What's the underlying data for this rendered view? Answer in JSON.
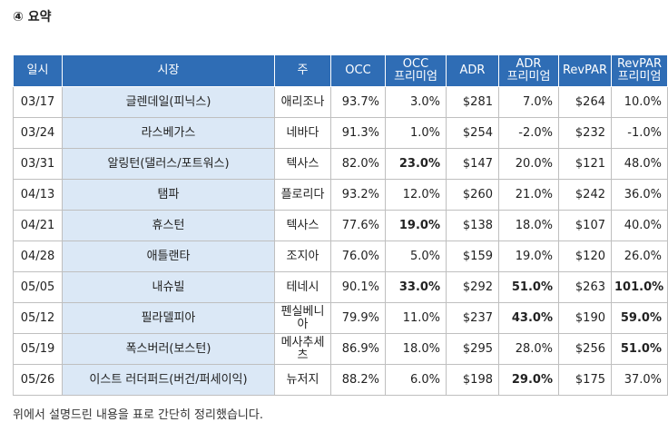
{
  "heading": "④ 요약",
  "headers": [
    "일시",
    "시장",
    "주",
    "OCC",
    "OCC\n프리미엄",
    "ADR",
    "ADR\n프리미엄",
    "RevPAR",
    "RevPAR\n프리미엄"
  ],
  "rows": [
    {
      "date": "03/17",
      "market": "글렌데일(피닉스)",
      "state": "애리조나",
      "occ": "93.7%",
      "occ_premium": "3.0%",
      "adr": "$281",
      "adr_premium": "7.0%",
      "revpar": "$264",
      "revpar_premium": "10.0%",
      "highlight": []
    },
    {
      "date": "03/24",
      "market": "라스베가스",
      "state": "네바다",
      "occ": "91.3%",
      "occ_premium": "1.0%",
      "adr": "$254",
      "adr_premium": "-2.0%",
      "revpar": "$232",
      "revpar_premium": "-1.0%",
      "highlight": []
    },
    {
      "date": "03/31",
      "market": "알링턴(댈러스/포트워스)",
      "state": "텍사스",
      "occ": "82.0%",
      "occ_premium": "23.0%",
      "adr": "$147",
      "adr_premium": "20.0%",
      "revpar": "$121",
      "revpar_premium": "48.0%",
      "highlight": [
        "occ_premium"
      ]
    },
    {
      "date": "04/13",
      "market": "탬파",
      "state": "플로리다",
      "occ": "93.2%",
      "occ_premium": "12.0%",
      "adr": "$260",
      "adr_premium": "21.0%",
      "revpar": "$242",
      "revpar_premium": "36.0%",
      "highlight": []
    },
    {
      "date": "04/21",
      "market": "휴스턴",
      "state": "텍사스",
      "occ": "77.6%",
      "occ_premium": "19.0%",
      "adr": "$138",
      "adr_premium": "18.0%",
      "revpar": "$107",
      "revpar_premium": "40.0%",
      "highlight": [
        "occ_premium"
      ]
    },
    {
      "date": "04/28",
      "market": "애틀랜타",
      "state": "조지아",
      "occ": "76.0%",
      "occ_premium": "5.0%",
      "adr": "$159",
      "adr_premium": "19.0%",
      "revpar": "$120",
      "revpar_premium": "26.0%",
      "highlight": []
    },
    {
      "date": "05/05",
      "market": "내슈빌",
      "state": "테네시",
      "occ": "90.1%",
      "occ_premium": "33.0%",
      "adr": "$292",
      "adr_premium": "51.0%",
      "revpar": "$263",
      "revpar_premium": "101.0%",
      "highlight": [
        "occ_premium",
        "adr_premium",
        "revpar_premium"
      ]
    },
    {
      "date": "05/12",
      "market": "필라델피아",
      "state": "펜실베니아",
      "occ": "79.9%",
      "occ_premium": "11.0%",
      "adr": "$237",
      "adr_premium": "43.0%",
      "revpar": "$190",
      "revpar_premium": "59.0%",
      "highlight": [
        "adr_premium",
        "revpar_premium"
      ]
    },
    {
      "date": "05/19",
      "market": "폭스버러(보스턴)",
      "state": "메사추세츠",
      "occ": "86.9%",
      "occ_premium": "18.0%",
      "adr": "$295",
      "adr_premium": "28.0%",
      "revpar": "$256",
      "revpar_premium": "51.0%",
      "highlight": [
        "revpar_premium"
      ]
    },
    {
      "date": "05/26",
      "market": "이스트 러더퍼드(버건/퍼세이익)",
      "state": "뉴저지",
      "occ": "88.2%",
      "occ_premium": "6.0%",
      "adr": "$198",
      "adr_premium": "29.0%",
      "revpar": "$175",
      "revpar_premium": "37.0%",
      "highlight": [
        "adr_premium"
      ]
    }
  ],
  "caption": "위에서 설명드린 내용을 표로 간단히 정리했습니다.",
  "colors": {
    "header_bg": "#2f6db5",
    "market_bg": "#dbe8f6",
    "highlight": "#2779c8"
  }
}
